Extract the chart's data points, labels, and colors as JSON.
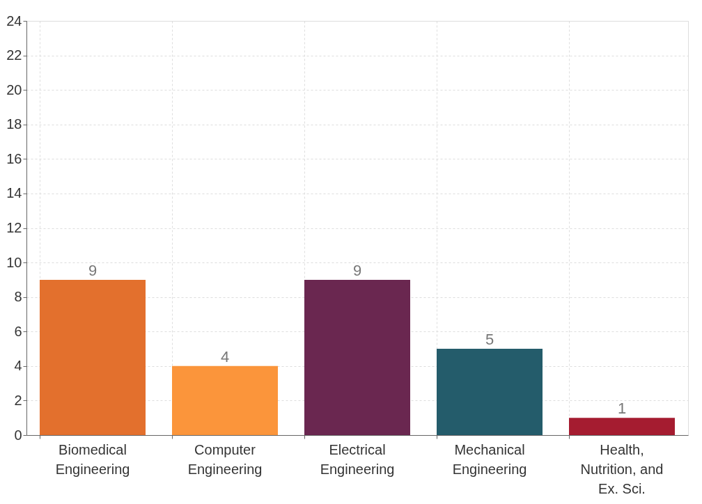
{
  "chart_data": {
    "type": "bar",
    "categories": [
      "Biomedical\nEngineering",
      "Computer\nEngineering",
      "Electrical\nEngineering",
      "Mechanical\nEngineering",
      "Health,\nNutrition, and\nEx. Sci."
    ],
    "values": [
      9,
      4,
      9,
      5,
      1
    ],
    "colors": [
      "#e3702d",
      "#fb953b",
      "#6a2750",
      "#245c6b",
      "#a51c30"
    ],
    "ylim": [
      0,
      24
    ],
    "yticks": [
      0,
      2,
      4,
      6,
      8,
      10,
      12,
      14,
      16,
      18,
      20,
      22,
      24
    ],
    "grid": true,
    "data_labels": true
  }
}
